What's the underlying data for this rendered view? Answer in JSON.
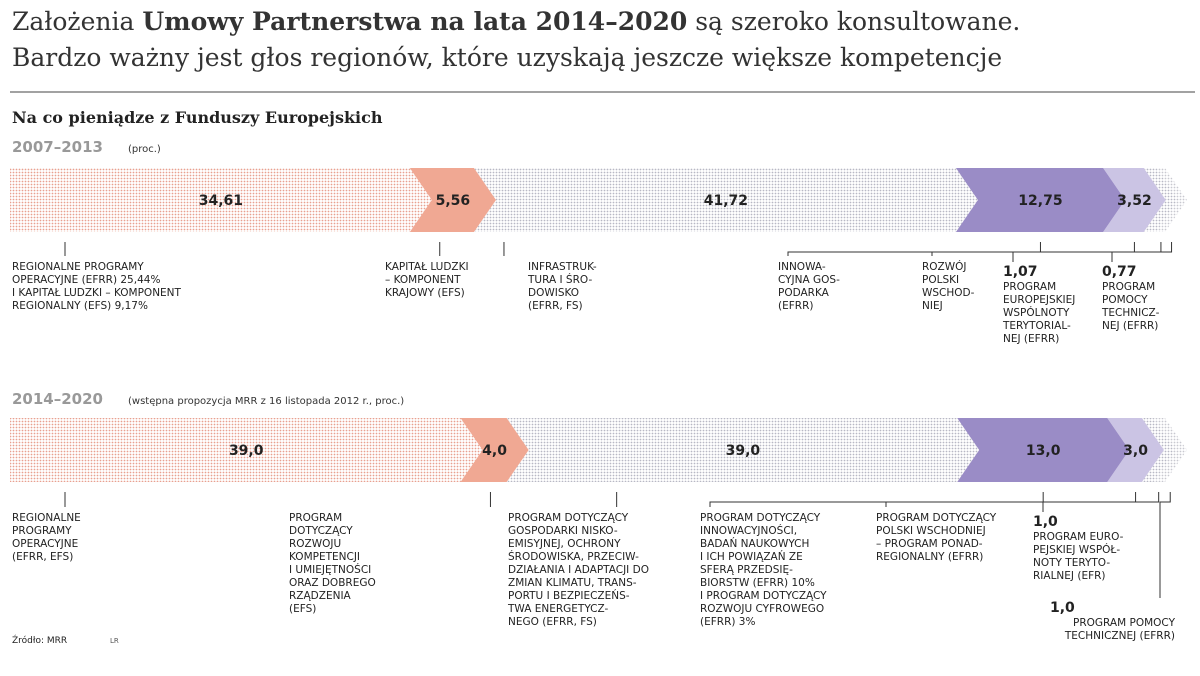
{
  "header": {
    "title_parts": [
      "Założenia ",
      "Umowy Partnerstwa na lata 2014–2020",
      " są szeroko konsultowane."
    ],
    "title_line2": "Bardzo ważny jest głos regionów, które uzyskają jeszcze większe kompetencje",
    "subtitle": "Na co pieniądze z Funduszy Europejskich",
    "source": "Źródło: MRR",
    "author": "LR"
  },
  "chart_data": [
    {
      "type": "arrow-bar",
      "title": "2007–2013",
      "subtitle": "(proc.)",
      "categories": [
        "REGIONALNE PROGRAMY\nOPERACYJNE (EFRR) 25,44%\nI KAPITAŁ LUDZKI – KOMPONENT\nREGIONALNY (EFS) 9,17%",
        "KAPITAŁ LUDZKI\n– KOMPONENT\nKRAJOWY (EFS)",
        "INFRASTRUK-\nTURA I ŚRO-\nDOWISKO\n(EFRR, FS)",
        "INNOWA-\nCYJNA GOS-\nPODARKA\n(EFRR)",
        "ROZWÓJ\nPOLSKI\nWSCHOD-\nNIEJ",
        "PROGRAM\nEUROPEJSKIEJ\nWSPÓLNOTY\nTERYTORIAL-\nNEJ (EFRR)",
        "PROGRAM\nPOMOCY\nTECHNICZ-\nNEJ (EFRR)"
      ],
      "values": [
        34.61,
        5.56,
        41.72,
        12.75,
        3.52,
        1.07,
        0.77
      ],
      "value_labels": [
        "34,61",
        "5,56",
        "41,72",
        "12,75",
        "3,52",
        "1,07",
        "0,77"
      ],
      "colors": [
        "#e8a090",
        "#f0a893",
        "#b8b8c4",
        "#9a8cc6",
        "#cbc4e4",
        "#b8b8c4",
        "#c8c8d0"
      ],
      "patterns": [
        "dots",
        "solid",
        "dots",
        "solid",
        "solid",
        "dots",
        "dots"
      ],
      "xlim": [
        0,
        100
      ]
    },
    {
      "type": "arrow-bar",
      "title": "2014–2020",
      "subtitle": "(wstępna propozycja MRR z 16 listopada 2012 r., proc.)",
      "categories": [
        "REGIONALNE\nPROGRAMY\nOPERACYJNE\n(EFRR, EFS)",
        "PROGRAM\nDOTYCZĄCY\nROZWOJU\nKOMPETENCJI\nI UMIEJĘTNOŚCI\nORAZ DOBREGO\nRZĄDZENIA\n(EFS)",
        "PROGRAM DOTYCZĄCY\nGOSPODARKI NISKO-\nEMISYJNEJ, OCHRONY\nŚRODOWISKA, PRZECIW-\nDZIAŁANIA I ADAPTACJI DO\nZMIAN KLIMATU, TRANS-\nPORTU I BEZPIECZEŃS-\nTWA ENERGETYCZ-\nNEGO (EFRR, FS)",
        "PROGRAM DOTYCZĄCY\nINNOWACYJNOŚCI,\nBADAŃ NAUKOWYCH\nI ICH POWIĄZAŃ ZE\nSFERĄ PRZEDSIĘ-\nBIORSTW (EFRR) 10%\nI PROGRAM DOTYCZĄCY\nROZWOJU CYFROWEGO\n(EFRR) 3%",
        "PROGRAM DOTYCZĄCY\nPOLSKI WSCHODNIEJ\n– PROGRAM PONAD-\nREGIONALNY (EFRR)",
        "PROGRAM EURO-\nPEJSKIEJ WSPÓŁ-\nNOTY TERYTO-\nRIALNEJ (EFR)",
        "PROGRAM POMOCY\nTECHNICZNEJ (EFRR)"
      ],
      "values": [
        39.0,
        4.0,
        39.0,
        13.0,
        3.0,
        1.0,
        1.0
      ],
      "value_labels": [
        "39,0",
        "4,0",
        "39,0",
        "13,0",
        "3,0",
        "1,0",
        "1,0"
      ],
      "colors": [
        "#e8a090",
        "#f0a893",
        "#b8b8c4",
        "#9a8cc6",
        "#cbc4e4",
        "#b8b8c4",
        "#c8c8d0"
      ],
      "patterns": [
        "dots",
        "solid",
        "dots",
        "solid",
        "solid",
        "dots",
        "dots"
      ],
      "xlim": [
        0,
        100
      ]
    }
  ]
}
